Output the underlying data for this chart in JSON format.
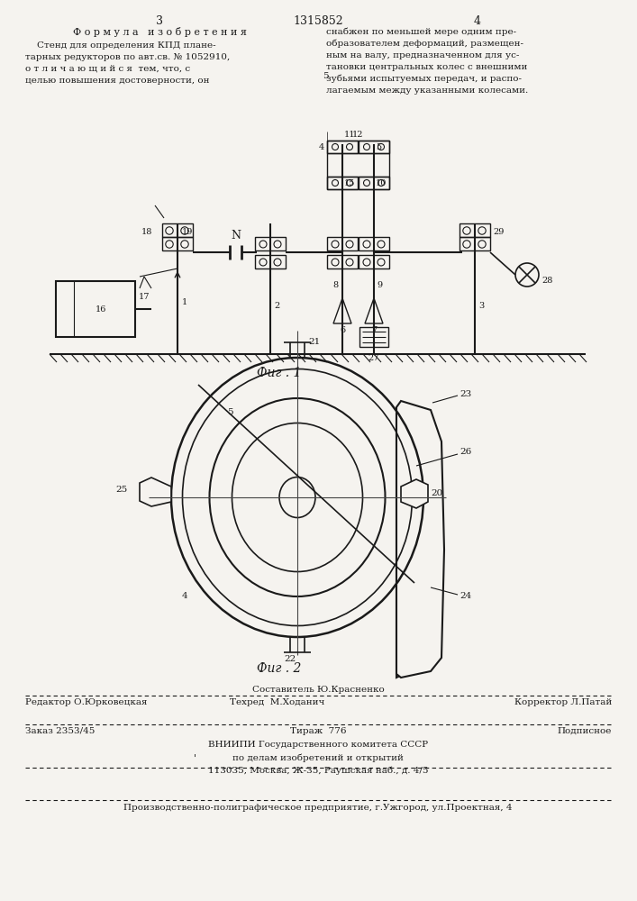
{
  "bg_color": "#f5f3ef",
  "text_color": "#1a1a1a",
  "line_color": "#1a1a1a",
  "page_number_left": "3",
  "page_number_center": "1315852",
  "page_number_right": "4",
  "left_column_title": "Ф о р м у л а   и з о б р е т е н и я",
  "left_column_text": "    Стенд для определения КПД плане-\nтарных редукторов по авт.св. № 1052910,\nо т л и ч а ю щ и й с я  тем, что, с\nцелью повышения достоверности, он",
  "right_column_text": "снабжен по меньшей мере одним пре-\nобразователем деформаций, размещен-\nным на валу, предназначенном для ус-\nтановки центральных колес с внешними\nзубьями испытуемых передач, и распо-\nлагаемым между указанными колесами.",
  "fig1_caption": "Фиг . 1",
  "fig2_caption": "Фиг . 2",
  "footer_composer": "Составитель Ю.Красненко",
  "footer_editor": "Редактор О.Юрковецкая",
  "footer_tech": "Техред  М.Ходанич",
  "footer_corrector": "Корректор Л.Патай",
  "footer_order": "Заказ 2353/45",
  "footer_tirazh": "Тираж  776",
  "footer_podp": "Подписное",
  "footer_vniip1": "ВНИИПИ Государственного комитета СССР",
  "footer_vniip2": "по делам изобретений и открытий",
  "footer_addr": "113035, Москва, Ж-35, Раушская наб., д. 4/5",
  "footer_bottom": "Производственно-полиграфическое предприятие, г.Ужгород, ул.Проектная, 4"
}
